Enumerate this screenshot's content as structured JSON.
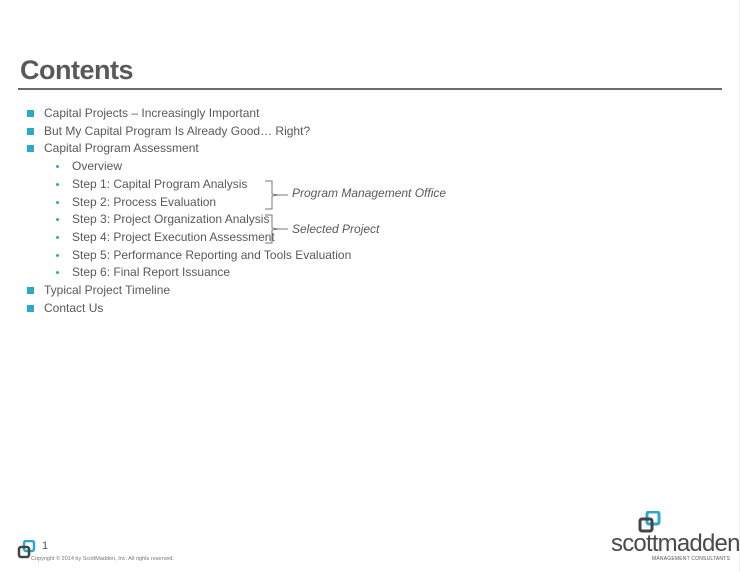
{
  "title": "Contents",
  "items": [
    {
      "label": "Capital Projects – Increasingly Important",
      "level": 1
    },
    {
      "label": "But My Capital Program Is Already Good… Right?",
      "level": 1
    },
    {
      "label": "Capital Program Assessment",
      "level": 1
    },
    {
      "label": "Overview",
      "level": 2
    },
    {
      "label": "Step 1: Capital Program Analysis",
      "level": 2
    },
    {
      "label": "Step 2: Process Evaluation",
      "level": 2
    },
    {
      "label": "Step 3: Project Organization Analysis",
      "level": 2
    },
    {
      "label": "Step 4: Project Execution Assessment",
      "level": 2
    },
    {
      "label": "Step 5: Performance Reporting and Tools Evaluation",
      "level": 2
    },
    {
      "label": "Step 6: Final Report Issuance",
      "level": 2
    },
    {
      "label": "Typical Project Timeline",
      "level": 1
    },
    {
      "label": "Contact Us",
      "level": 1
    }
  ],
  "groups": {
    "pmo": "Program Management Office",
    "selected": "Selected Project"
  },
  "footer": {
    "page_number": "1",
    "copyright": "Copyright © 2014 by ScottMadden, Inc. All rights reserved."
  },
  "logo": {
    "name": "scottmadden",
    "tagline": "MANAGEMENT CONSULTANTS"
  },
  "colors": {
    "accent": "#2aaac8",
    "text": "#595959"
  }
}
